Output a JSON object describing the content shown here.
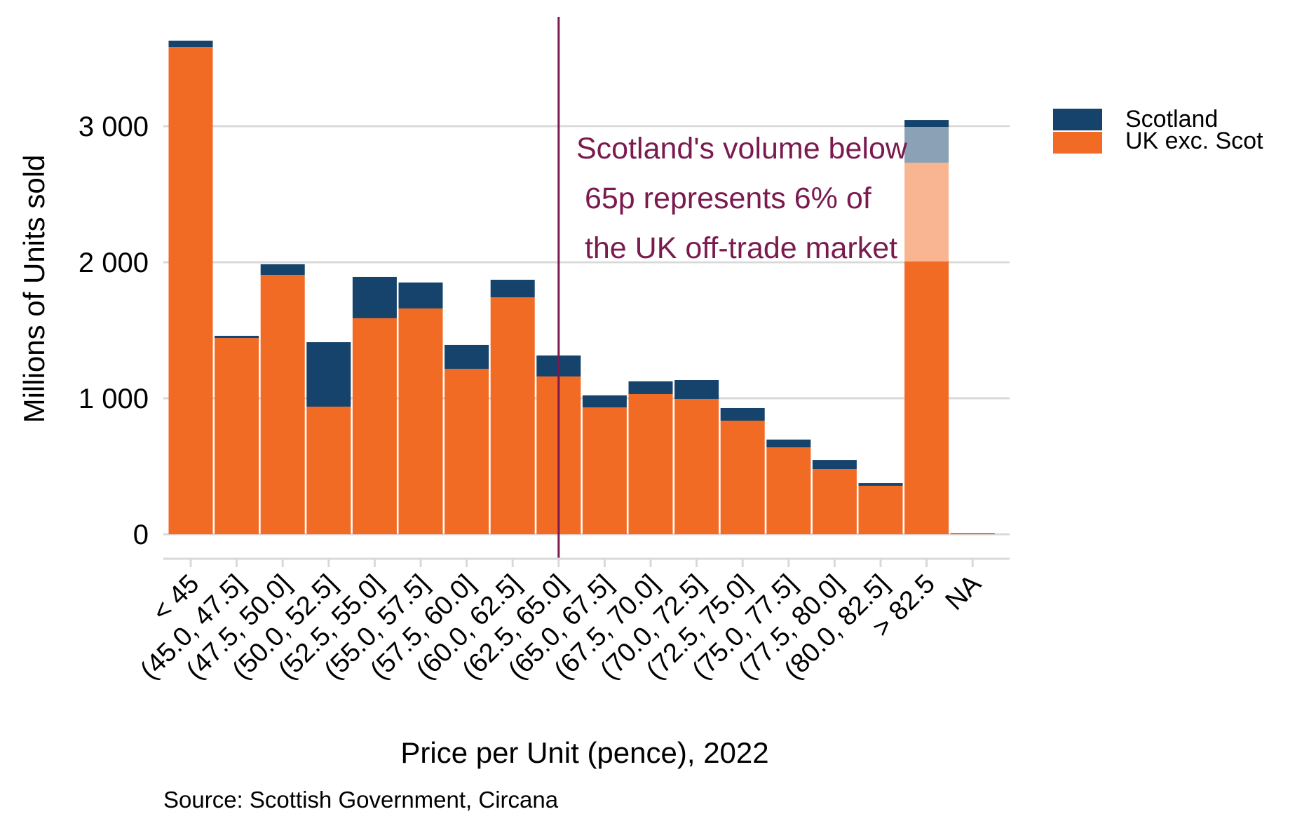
{
  "chart_data": {
    "type": "bar",
    "stacked": true,
    "xlabel": "Price per Unit (pence), 2022",
    "ylabel": "Millions of Units sold",
    "caption": "Source: Scottish Government, Circana",
    "ylim": [
      0,
      3700
    ],
    "yticks": [
      0,
      1000,
      2000,
      3000
    ],
    "ytick_labels": [
      "0",
      "1 000",
      "2 000",
      "3 000"
    ],
    "grid": true,
    "categories": [
      "< 45",
      "(45.0, 47.5]",
      "(47.5, 50.0]",
      "(50.0, 52.5]",
      "(52.5, 55.0]",
      "(55.0, 57.5]",
      "(57.5, 60.0]",
      "(60.0, 62.5]",
      "(62.5, 65.0]",
      "(65.0, 67.5]",
      "(67.5, 70.0]",
      "(70.0, 72.5]",
      "(72.5, 75.0]",
      "(75.0, 77.5]",
      "(77.5, 80.0]",
      "(80.0, 82.5]",
      "> 82.5",
      "NA"
    ],
    "series": [
      {
        "name": "UK exc. Scot",
        "color": "#f26b25",
        "values": [
          3582,
          1443,
          1907,
          938,
          1588,
          1660,
          1216,
          1742,
          1160,
          933,
          1031,
          995,
          835,
          639,
          479,
          356,
          2732,
          10
        ]
      },
      {
        "name": "Scotland",
        "color": "#16436b",
        "values": [
          47,
          16,
          78,
          474,
          304,
          191,
          176,
          129,
          154,
          88,
          93,
          139,
          93,
          57,
          67,
          20,
          314,
          0
        ]
      }
    ],
    "legend": {
      "position": "right",
      "entries": [
        "Scotland",
        "UK exc. Scot"
      ]
    },
    "reference_line": {
      "between_categories": [
        "(62.5, 65.0]",
        "(65.0, 67.5]"
      ],
      "at_category": "(62.5, 65.0]",
      "color": "#7a1a4f"
    },
    "annotation": {
      "lines": [
        "Scotland's volume below",
        " 65p represents 6% of",
        " the UK off-trade market"
      ],
      "color": "#7a1a4f"
    }
  }
}
